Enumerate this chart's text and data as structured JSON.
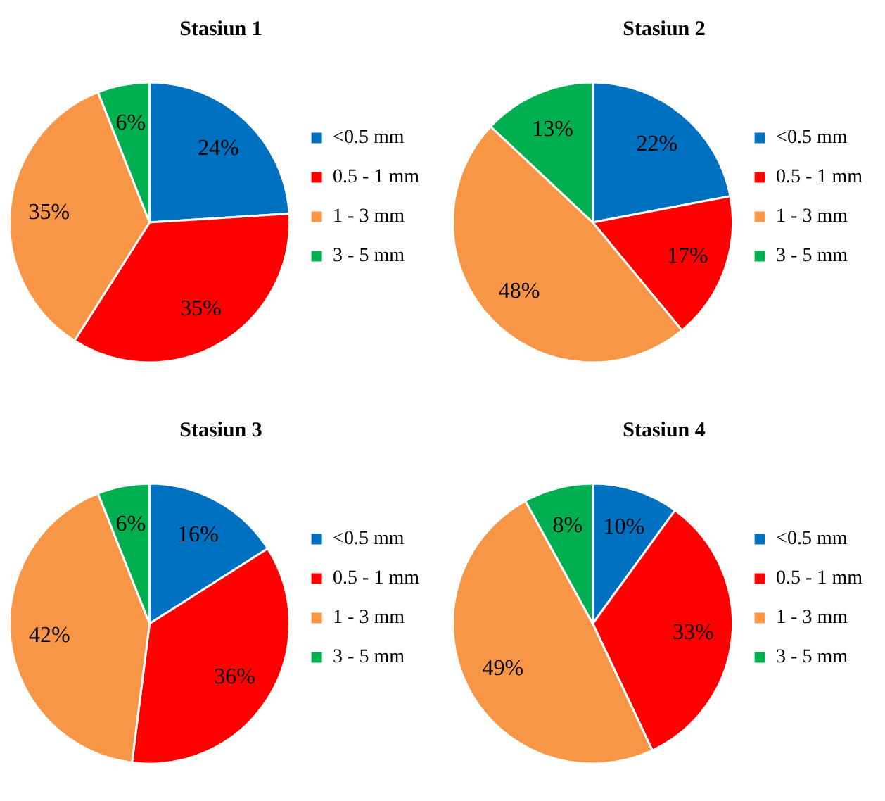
{
  "chart_data": [
    {
      "type": "pie",
      "title": "Stasiun 1",
      "categories": [
        "<0.5 mm",
        "0.5 - 1 mm",
        "1 - 3 mm",
        "3 - 5 mm"
      ],
      "values": [
        24,
        35,
        35,
        6
      ],
      "value_labels": [
        "24%",
        "35%",
        "35%",
        "6%"
      ],
      "colors": [
        "#0070c0",
        "#ff0000",
        "#f79646",
        "#00b050"
      ],
      "legend": "right"
    },
    {
      "type": "pie",
      "title": "Stasiun 2",
      "categories": [
        "<0.5 mm",
        "0.5 - 1 mm",
        "1 - 3 mm",
        "3 - 5 mm"
      ],
      "values": [
        22,
        17,
        48,
        13
      ],
      "value_labels": [
        "22%",
        "17%",
        "48%",
        "13%"
      ],
      "colors": [
        "#0070c0",
        "#ff0000",
        "#f79646",
        "#00b050"
      ],
      "legend": "right"
    },
    {
      "type": "pie",
      "title": "Stasiun 3",
      "categories": [
        "<0.5 mm",
        "0.5 - 1 mm",
        "1 - 3 mm",
        "3 - 5 mm"
      ],
      "values": [
        16,
        36,
        42,
        6
      ],
      "value_labels": [
        "16%",
        "36%",
        "42%",
        "6%"
      ],
      "colors": [
        "#0070c0",
        "#ff0000",
        "#f79646",
        "#00b050"
      ],
      "legend": "right"
    },
    {
      "type": "pie",
      "title": "Stasiun 4",
      "categories": [
        "<0.5 mm",
        "0.5 - 1 mm",
        "1 - 3 mm",
        "3 - 5 mm"
      ],
      "values": [
        10,
        33,
        49,
        8
      ],
      "value_labels": [
        "10%",
        "33%",
        "49%",
        "8%"
      ],
      "colors": [
        "#0070c0",
        "#ff0000",
        "#f79646",
        "#00b050"
      ],
      "legend": "right"
    }
  ]
}
